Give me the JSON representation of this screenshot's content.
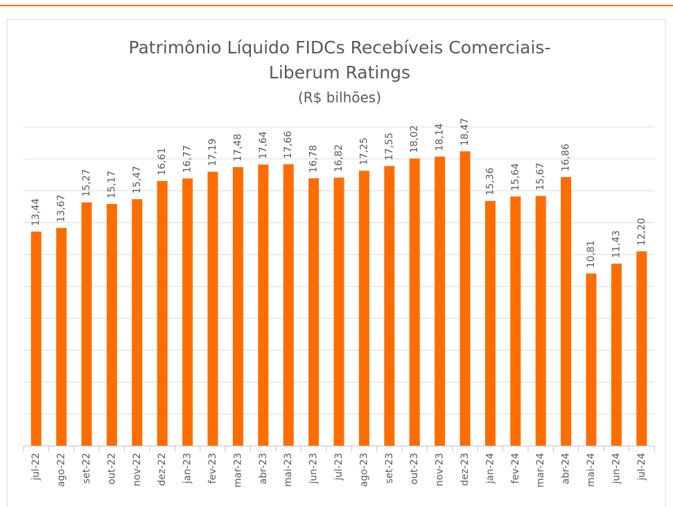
{
  "chart_data": {
    "type": "bar",
    "title": [
      "Patrimônio Líquido FIDCs Recebíveis Comerciais-",
      "Liberum Ratings"
    ],
    "subtitle": "(R$ bilhões)",
    "categories": [
      "jul-22",
      "ago-22",
      "set-22",
      "out-22",
      "nov-22",
      "dez-22",
      "jan-23",
      "fev-23",
      "mar-23",
      "abr-23",
      "mai-23",
      "jun-23",
      "jul-23",
      "ago-23",
      "set-23",
      "out-23",
      "nov-23",
      "dez-23",
      "jan-24",
      "fev-24",
      "mar-24",
      "abr-24",
      "mai-24",
      "jun-24",
      "jul-24"
    ],
    "values": [
      13.44,
      13.67,
      15.27,
      15.17,
      15.47,
      16.61,
      16.77,
      17.19,
      17.48,
      17.64,
      17.66,
      16.78,
      16.82,
      17.25,
      17.55,
      18.02,
      18.14,
      18.47,
      15.36,
      15.64,
      15.67,
      16.86,
      10.81,
      11.43,
      12.2
    ],
    "value_labels": [
      "13,44",
      "13,67",
      "15,27",
      "15,17",
      "15,47",
      "16,61",
      "16,77",
      "17,19",
      "17,48",
      "17,64",
      "17,66",
      "16,78",
      "16,82",
      "17,25",
      "17,55",
      "18,02",
      "18,14",
      "18,47",
      "15,36",
      "15,64",
      "15,67",
      "16,86",
      "10,81",
      "11,43",
      "12,20"
    ],
    "color": "#ff6d00",
    "ylim": [
      0,
      20
    ],
    "yticks": [
      0,
      2,
      4,
      6,
      8,
      10,
      12,
      14,
      16,
      18,
      20
    ],
    "grid": true
  }
}
